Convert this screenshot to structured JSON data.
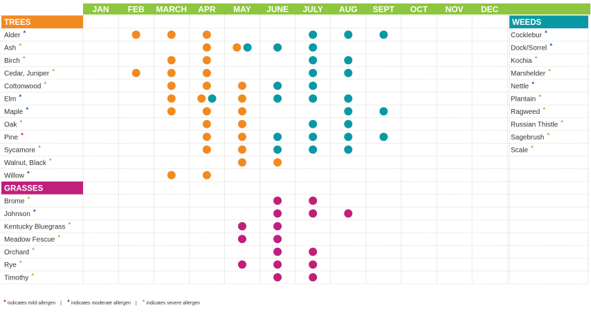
{
  "chart_data": {
    "type": "table",
    "months": [
      "JAN",
      "FEB",
      "MARCH",
      "APR",
      "MAY",
      "JUNE",
      "JULY",
      "AUG",
      "SEPT",
      "OCT",
      "NOV",
      "DEC"
    ],
    "colors": {
      "header_bar": "#8dc63f",
      "trees": "#f28a22",
      "weeds": "#0a99a4",
      "grasses": "#c01f7d",
      "mild": "#c01f7d",
      "moderate": "#1f5aa6",
      "severe": "#8dc63f",
      "grid": "#b9b9b9"
    },
    "sections": [
      {
        "title": "TREES",
        "color_key": "trees",
        "rows": [
          {
            "name": "Alder",
            "allergen": "moderate",
            "dots": [
              {
                "m": 1,
                "c": "trees"
              },
              {
                "m": 2,
                "c": "trees"
              },
              {
                "m": 3,
                "c": "trees"
              },
              {
                "m": 6,
                "c": "weeds"
              },
              {
                "m": 7,
                "c": "weeds"
              },
              {
                "m": 8,
                "c": "weeds"
              }
            ]
          },
          {
            "name": "Ash",
            "allergen": "severe",
            "dots": [
              {
                "m": 3,
                "c": "trees"
              },
              {
                "m": 4,
                "c": "trees",
                "o": -0.15
              },
              {
                "m": 4,
                "c": "weeds",
                "o": 0.15
              },
              {
                "m": 5,
                "c": "weeds"
              },
              {
                "m": 6,
                "c": "weeds"
              }
            ]
          },
          {
            "name": "Birch",
            "allergen": "severe",
            "dots": [
              {
                "m": 2,
                "c": "trees"
              },
              {
                "m": 3,
                "c": "trees"
              },
              {
                "m": 6,
                "c": "weeds"
              },
              {
                "m": 7,
                "c": "weeds"
              }
            ]
          },
          {
            "name": "Cedar, Juniper",
            "allergen": "severe",
            "dots": [
              {
                "m": 1,
                "c": "trees"
              },
              {
                "m": 2,
                "c": "trees"
              },
              {
                "m": 3,
                "c": "trees"
              },
              {
                "m": 6,
                "c": "weeds"
              },
              {
                "m": 7,
                "c": "weeds"
              }
            ]
          },
          {
            "name": "Cottonwood",
            "allergen": "severe",
            "dots": [
              {
                "m": 2,
                "c": "trees"
              },
              {
                "m": 3,
                "c": "trees"
              },
              {
                "m": 4,
                "c": "trees"
              },
              {
                "m": 5,
                "c": "weeds"
              },
              {
                "m": 6,
                "c": "weeds"
              }
            ]
          },
          {
            "name": "Elm",
            "allergen": "moderate",
            "dots": [
              {
                "m": 2,
                "c": "trees"
              },
              {
                "m": 3,
                "c": "trees",
                "o": -0.15
              },
              {
                "m": 3,
                "c": "weeds",
                "o": 0.15
              },
              {
                "m": 4,
                "c": "trees"
              },
              {
                "m": 5,
                "c": "weeds"
              },
              {
                "m": 6,
                "c": "weeds"
              },
              {
                "m": 7,
                "c": "weeds"
              }
            ]
          },
          {
            "name": "Maple",
            "allergen": "moderate",
            "dots": [
              {
                "m": 2,
                "c": "trees"
              },
              {
                "m": 3,
                "c": "trees"
              },
              {
                "m": 4,
                "c": "trees"
              },
              {
                "m": 7,
                "c": "weeds"
              },
              {
                "m": 8,
                "c": "weeds"
              }
            ]
          },
          {
            "name": "Oak",
            "allergen": "severe",
            "dots": [
              {
                "m": 3,
                "c": "trees"
              },
              {
                "m": 4,
                "c": "trees"
              },
              {
                "m": 6,
                "c": "weeds"
              },
              {
                "m": 7,
                "c": "weeds"
              }
            ]
          },
          {
            "name": "Pine",
            "allergen": "mild",
            "dots": [
              {
                "m": 3,
                "c": "trees"
              },
              {
                "m": 4,
                "c": "trees"
              },
              {
                "m": 5,
                "c": "weeds"
              },
              {
                "m": 6,
                "c": "weeds"
              },
              {
                "m": 7,
                "c": "weeds"
              },
              {
                "m": 8,
                "c": "weeds"
              }
            ]
          },
          {
            "name": "Sycamore",
            "allergen": "severe",
            "dots": [
              {
                "m": 3,
                "c": "trees"
              },
              {
                "m": 4,
                "c": "trees"
              },
              {
                "m": 5,
                "c": "weeds"
              },
              {
                "m": 6,
                "c": "weeds"
              },
              {
                "m": 7,
                "c": "weeds"
              }
            ]
          },
          {
            "name": "Walnut, Black",
            "allergen": "severe",
            "dots": [
              {
                "m": 4,
                "c": "trees"
              },
              {
                "m": 5,
                "c": "trees"
              }
            ]
          },
          {
            "name": "Willow",
            "allergen": "moderate",
            "dots": [
              {
                "m": 2,
                "c": "trees"
              },
              {
                "m": 3,
                "c": "trees"
              }
            ]
          }
        ]
      },
      {
        "title": "GRASSES",
        "color_key": "grasses",
        "rows": [
          {
            "name": "Brome",
            "allergen": "severe",
            "dots": [
              {
                "m": 5,
                "c": "grasses"
              },
              {
                "m": 6,
                "c": "grasses"
              }
            ]
          },
          {
            "name": "Johnson",
            "allergen": "moderate",
            "dots": [
              {
                "m": 5,
                "c": "grasses"
              },
              {
                "m": 6,
                "c": "grasses"
              },
              {
                "m": 7,
                "c": "grasses"
              }
            ]
          },
          {
            "name": "Kentucky Bluegrass",
            "allergen": "severe",
            "dots": [
              {
                "m": 4,
                "c": "grasses"
              },
              {
                "m": 5,
                "c": "grasses"
              }
            ]
          },
          {
            "name": "Meadow Fescue",
            "allergen": "severe",
            "dots": [
              {
                "m": 4,
                "c": "grasses"
              },
              {
                "m": 5,
                "c": "grasses"
              }
            ]
          },
          {
            "name": "Orchard",
            "allergen": "severe",
            "dots": [
              {
                "m": 5,
                "c": "grasses"
              },
              {
                "m": 6,
                "c": "grasses"
              }
            ]
          },
          {
            "name": "Rye",
            "allergen": "severe",
            "dots": [
              {
                "m": 4,
                "c": "grasses"
              },
              {
                "m": 5,
                "c": "grasses"
              },
              {
                "m": 6,
                "c": "grasses"
              }
            ]
          },
          {
            "name": "Timothy",
            "allergen": "severe",
            "dots": [
              {
                "m": 5,
                "c": "grasses"
              },
              {
                "m": 6,
                "c": "grasses"
              }
            ]
          }
        ]
      }
    ],
    "weeds": {
      "title": "WEEDS",
      "rows": [
        {
          "name": "Cocklebur",
          "allergen": "moderate"
        },
        {
          "name": "Dock/Sorrel",
          "allergen": "moderate"
        },
        {
          "name": "Kochia",
          "allergen": "severe"
        },
        {
          "name": "Marshelder",
          "allergen": "severe"
        },
        {
          "name": "Nettle",
          "allergen": "moderate"
        },
        {
          "name": "Plantain",
          "allergen": "severe"
        },
        {
          "name": "Ragweed",
          "allergen": "severe"
        },
        {
          "name": "Russian Thistle",
          "allergen": "severe"
        },
        {
          "name": "Sagebrush",
          "allergen": "severe"
        },
        {
          "name": "Scale",
          "allergen": "severe"
        }
      ]
    }
  },
  "legend": {
    "mild": "indicates mild allergen",
    "moderate": "indicates moderate allergen",
    "severe": "indicates severe allergen",
    "separator": "|"
  }
}
